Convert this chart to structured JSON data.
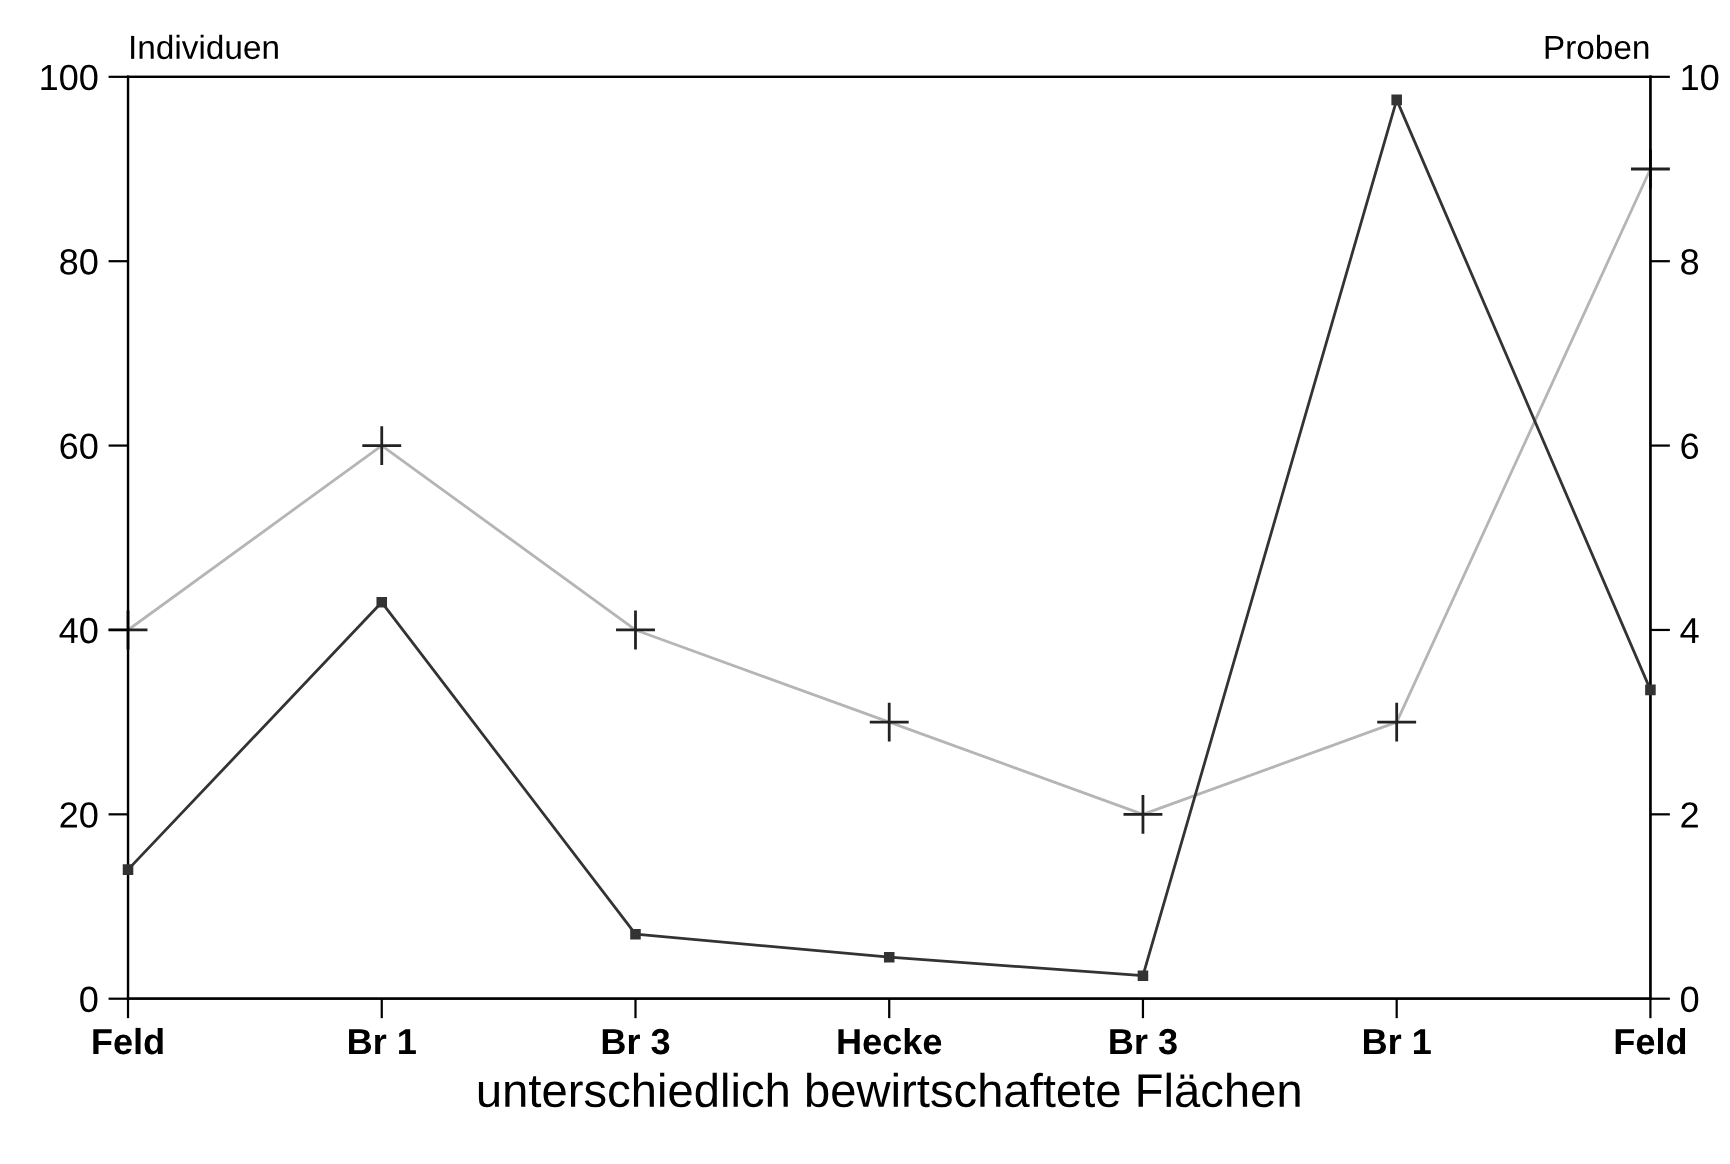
{
  "chart_data": {
    "type": "line",
    "xlabel": "unterschiedlich bewirtschaftete Flächen",
    "ylabel": "Individuen",
    "y2label": "Proben",
    "categories": [
      "Feld",
      "Br 1",
      "Br 3",
      "Hecke",
      "Br 3",
      "Br 1",
      "Feld"
    ],
    "series": [
      {
        "color": "#333333",
        "marker": "square",
        "values": [
          14,
          43,
          7,
          4.5,
          2.5,
          97.5,
          33.5
        ]
      },
      {
        "color": "#b5b5b5",
        "marker": "cross",
        "axis": "y2",
        "values": [
          4,
          6,
          4,
          3,
          2,
          3,
          9
        ]
      }
    ],
    "ylim": [
      0,
      100
    ],
    "yticks": [
      0,
      20,
      40,
      60,
      80,
      100
    ],
    "y2lim": [
      0,
      10
    ],
    "y2ticks": [
      0,
      2,
      4,
      6,
      8,
      10
    ],
    "grid": false,
    "line_style": "solid"
  }
}
